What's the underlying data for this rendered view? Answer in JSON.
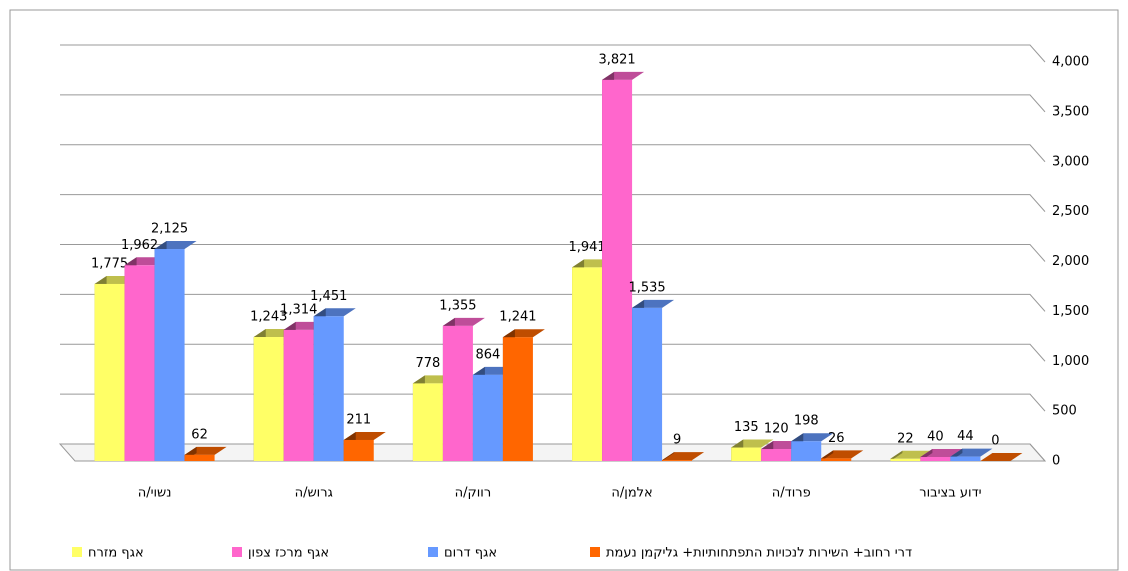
{
  "chart_data": {
    "type": "bar3d",
    "categories": [
      "נשוי/ה",
      "גרוש/ה",
      "רווק/ה",
      "אלמן/ה",
      "פרוד/ה",
      "ידוע בציבור"
    ],
    "series": [
      {
        "name": "אגף מזרח",
        "color": "#ffff66",
        "values": [
          1775,
          1243,
          778,
          1941,
          135,
          22
        ],
        "value_labels": [
          "1,775",
          "1,243",
          "778",
          "1,941",
          "135",
          "22"
        ]
      },
      {
        "name": "אגף מרכז צפון",
        "color": "#ff66cc",
        "values": [
          1962,
          1314,
          1355,
          3821,
          120,
          40
        ],
        "value_labels": [
          "1,962",
          "1,314",
          "1,355",
          "3,821",
          "120",
          "40"
        ]
      },
      {
        "name": "אגף דרום",
        "color": "#6699ff",
        "values": [
          2125,
          1451,
          864,
          1535,
          198,
          44
        ],
        "value_labels": [
          "2,125",
          "1,451",
          "864",
          "1,535",
          "198",
          "44"
        ]
      },
      {
        "name": "דרי רחוב+ השירות לנכויות התפתחותיות+ גליקמן נעמת",
        "color": "#ff6600",
        "values": [
          62,
          211,
          1241,
          9,
          26,
          0
        ],
        "value_labels": [
          "62",
          "211",
          "1,241",
          "9",
          "26",
          "0"
        ]
      }
    ],
    "ylim": [
      0,
      4000
    ],
    "yticks": [
      0,
      500,
      {
        "value": 1000,
        "label": "1,000"
      },
      {
        "value": 1500,
        "label": "1,500"
      },
      {
        "value": 2000,
        "label": "2,000"
      },
      {
        "value": 2500,
        "label": "2,500"
      },
      {
        "value": 3000,
        "label": "3,000"
      },
      {
        "value": 3500,
        "label": "3,500"
      },
      {
        "value": 4000,
        "label": "4,000"
      }
    ],
    "grid": true,
    "legend": "bottom"
  }
}
